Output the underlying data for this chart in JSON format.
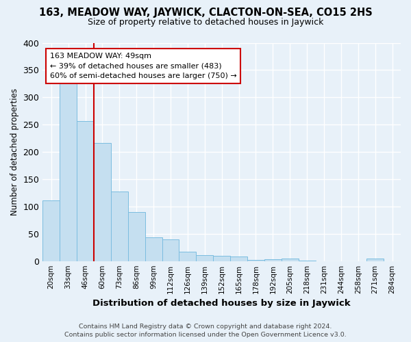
{
  "title": "163, MEADOW WAY, JAYWICK, CLACTON-ON-SEA, CO15 2HS",
  "subtitle": "Size of property relative to detached houses in Jaywick",
  "xlabel": "Distribution of detached houses by size in Jaywick",
  "ylabel": "Number of detached properties",
  "footer_line1": "Contains HM Land Registry data © Crown copyright and database right 2024.",
  "footer_line2": "Contains public sector information licensed under the Open Government Licence v3.0.",
  "categories": [
    "20sqm",
    "33sqm",
    "46sqm",
    "60sqm",
    "73sqm",
    "86sqm",
    "99sqm",
    "112sqm",
    "126sqm",
    "139sqm",
    "152sqm",
    "165sqm",
    "178sqm",
    "192sqm",
    "205sqm",
    "218sqm",
    "231sqm",
    "244sqm",
    "258sqm",
    "271sqm",
    "284sqm"
  ],
  "values": [
    111,
    328,
    256,
    216,
    127,
    90,
    44,
    40,
    17,
    11,
    9,
    8,
    2,
    3,
    4,
    1,
    0,
    0,
    0,
    5,
    0
  ],
  "bar_color": "#c5dff0",
  "bar_edge_color": "#7bbde0",
  "background_color": "#e8f1f9",
  "grid_color": "#ffffff",
  "property_label": "163 MEADOW WAY: 49sqm",
  "annotation_line1": "← 39% of detached houses are smaller (483)",
  "annotation_line2": "60% of semi-detached houses are larger (750) →",
  "vline_x_index": 2.5,
  "annotation_box_facecolor": "#ffffff",
  "annotation_box_edge": "#cc0000",
  "vline_color": "#cc0000",
  "ylim": [
    0,
    400
  ],
  "yticks": [
    0,
    50,
    100,
    150,
    200,
    250,
    300,
    350,
    400
  ]
}
